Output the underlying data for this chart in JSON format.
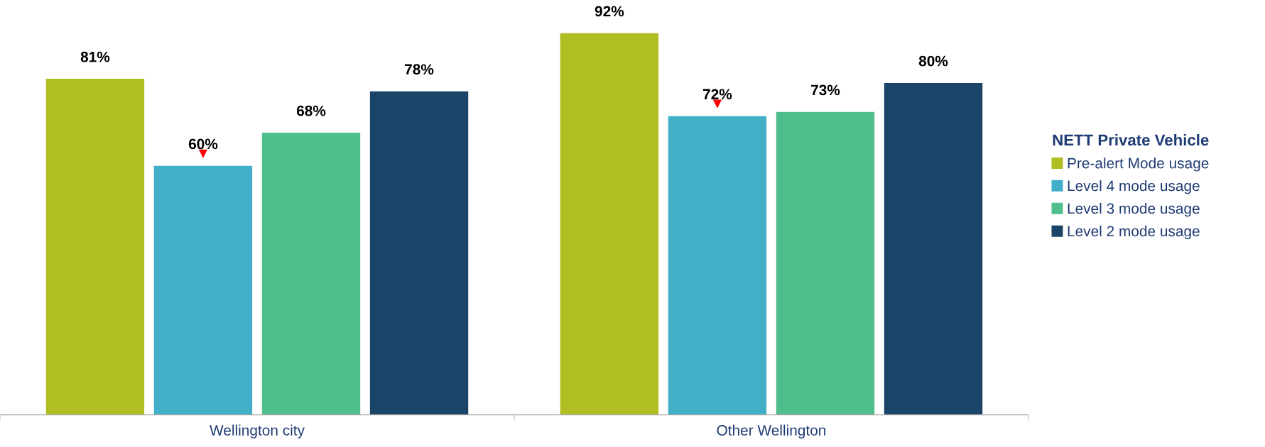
{
  "chart_data": {
    "type": "bar",
    "categories": [
      "Wellington city",
      "Other Wellington"
    ],
    "series": [
      {
        "name": "Pre-alert Mode usage",
        "color": "#afbe22",
        "values": [
          81,
          92
        ],
        "value_labels": [
          "81%",
          "92%"
        ]
      },
      {
        "name": "Level 4 mode usage",
        "color": "#41afc8",
        "values": [
          60,
          72
        ],
        "value_labels": [
          "60%",
          "72%"
        ]
      },
      {
        "name": "Level 3 mode usage",
        "color": "#50be8c",
        "values": [
          68,
          73
        ],
        "value_labels": [
          "68%",
          "73%"
        ]
      },
      {
        "name": "Level 2 mode usage",
        "color": "#1b4568",
        "values": [
          78,
          80
        ],
        "value_labels": [
          "78%",
          "80%"
        ]
      }
    ],
    "legend": "right",
    "legend_title": "NETT Private Vehicle",
    "annotations": [
      "▼",
      "▼"
    ]
  }
}
